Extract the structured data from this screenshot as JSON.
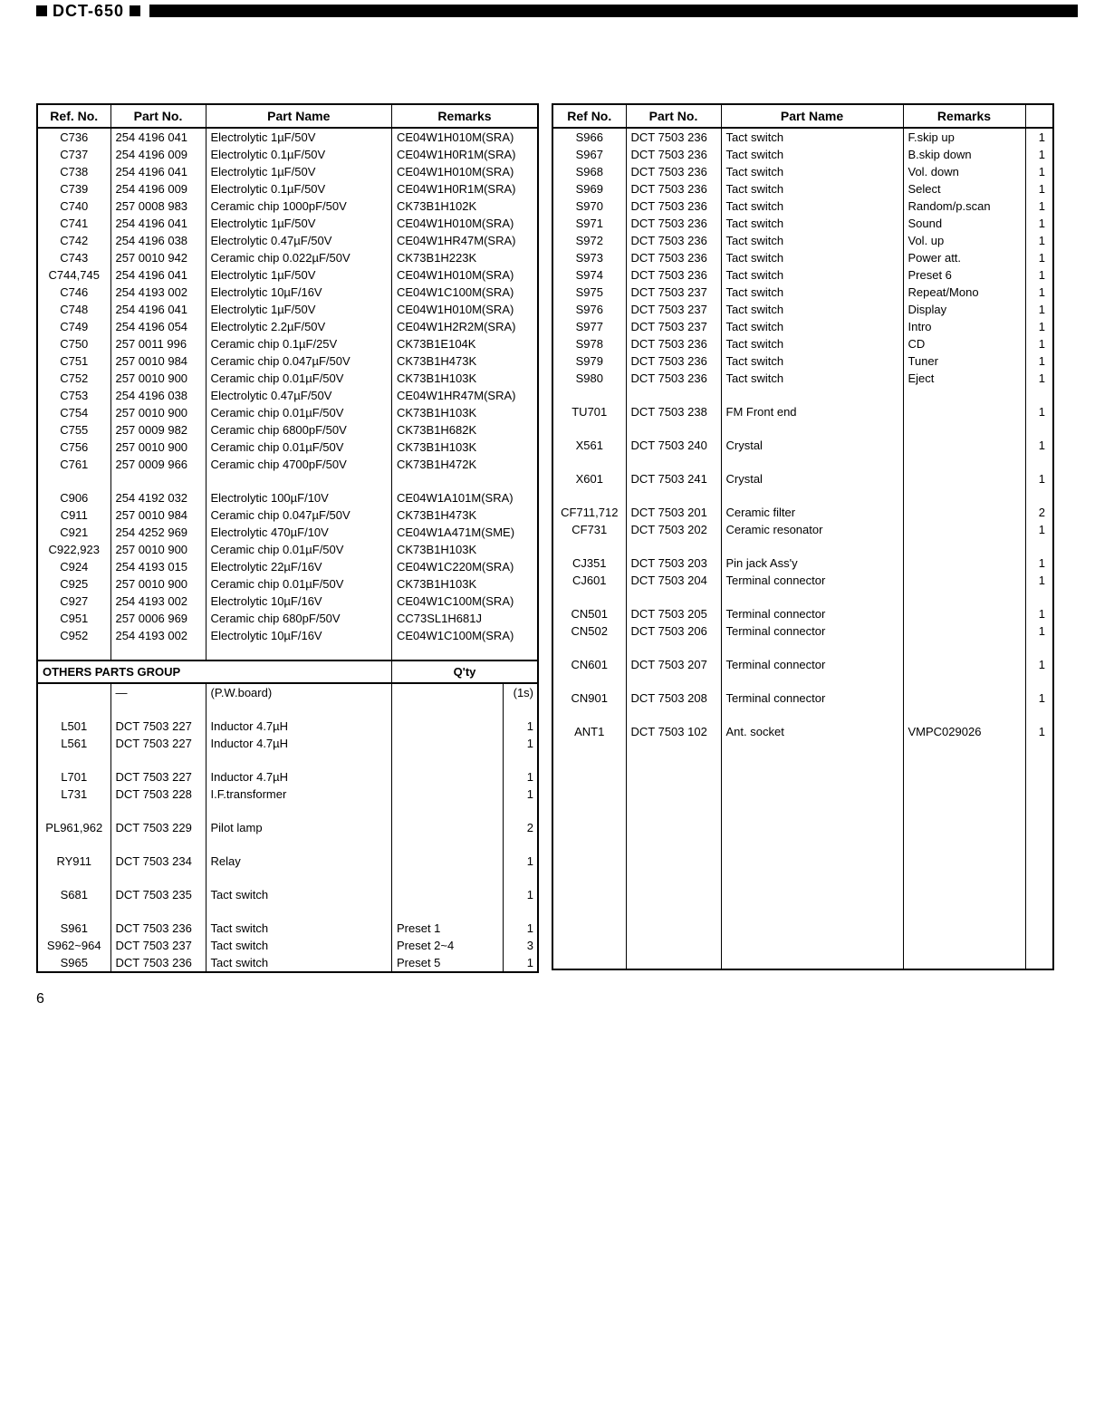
{
  "model": "DCT-650",
  "page_number": "6",
  "headers_left": {
    "ref": "Ref. No.",
    "part": "Part No.",
    "name": "Part Name",
    "rem": "Remarks"
  },
  "headers_right": {
    "ref": "Ref No.",
    "part": "Part No.",
    "name": "Part Name",
    "rem": "Remarks",
    "qty": ""
  },
  "section_label": "OTHERS PARTS GROUP",
  "section_qty": "Q'ty",
  "left_top": [
    {
      "ref": "C736",
      "part": "254 4196 041",
      "name": "Electrolytic 1µF/50V",
      "rem": "CE04W1H010M(SRA)"
    },
    {
      "ref": "C737",
      "part": "254 4196 009",
      "name": "Electrolytic 0.1µF/50V",
      "rem": "CE04W1H0R1M(SRA)"
    },
    {
      "ref": "C738",
      "part": "254 4196 041",
      "name": "Electrolytic 1µF/50V",
      "rem": "CE04W1H010M(SRA)"
    },
    {
      "ref": "C739",
      "part": "254 4196 009",
      "name": "Electrolytic 0.1µF/50V",
      "rem": "CE04W1H0R1M(SRA)"
    },
    {
      "ref": "C740",
      "part": "257 0008 983",
      "name": "Ceramic chip 1000pF/50V",
      "rem": "CK73B1H102K"
    },
    {
      "ref": "C741",
      "part": "254 4196 041",
      "name": "Electrolytic 1µF/50V",
      "rem": "CE04W1H010M(SRA)"
    },
    {
      "ref": "C742",
      "part": "254 4196 038",
      "name": "Electrolytic 0.47µF/50V",
      "rem": "CE04W1HR47M(SRA)"
    },
    {
      "ref": "C743",
      "part": "257 0010 942",
      "name": "Ceramic chip 0.022µF/50V",
      "rem": "CK73B1H223K"
    },
    {
      "ref": "C744,745",
      "part": "254 4196 041",
      "name": "Electrolytic 1µF/50V",
      "rem": "CE04W1H010M(SRA)"
    },
    {
      "ref": "C746",
      "part": "254 4193 002",
      "name": "Electrolytic 10µF/16V",
      "rem": "CE04W1C100M(SRA)"
    },
    {
      "ref": "C748",
      "part": "254 4196 041",
      "name": "Electrolytic 1µF/50V",
      "rem": "CE04W1H010M(SRA)"
    },
    {
      "ref": "C749",
      "part": "254 4196 054",
      "name": "Electrolytic 2.2µF/50V",
      "rem": "CE04W1H2R2M(SRA)"
    },
    {
      "ref": "C750",
      "part": "257 0011 996",
      "name": "Ceramic chip 0.1µF/25V",
      "rem": "CK73B1E104K"
    },
    {
      "ref": "C751",
      "part": "257 0010 984",
      "name": "Ceramic chip 0.047µF/50V",
      "rem": "CK73B1H473K"
    },
    {
      "ref": "C752",
      "part": "257 0010 900",
      "name": "Ceramic chip 0.01µF/50V",
      "rem": "CK73B1H103K"
    },
    {
      "ref": "C753",
      "part": "254 4196 038",
      "name": "Electrolytic 0.47µF/50V",
      "rem": "CE04W1HR47M(SRA)"
    },
    {
      "ref": "C754",
      "part": "257 0010 900",
      "name": "Ceramic chip 0.01µF/50V",
      "rem": "CK73B1H103K"
    },
    {
      "ref": "C755",
      "part": "257 0009 982",
      "name": "Ceramic chip 6800pF/50V",
      "rem": "CK73B1H682K"
    },
    {
      "ref": "C756",
      "part": "257 0010 900",
      "name": "Ceramic chip 0.01µF/50V",
      "rem": "CK73B1H103K"
    },
    {
      "ref": "C761",
      "part": "257 0009 966",
      "name": "Ceramic chip 4700pF/50V",
      "rem": "CK73B1H472K"
    },
    {
      "ref": "",
      "part": "",
      "name": "",
      "rem": ""
    },
    {
      "ref": "C906",
      "part": "254 4192 032",
      "name": "Electrolytic 100µF/10V",
      "rem": "CE04W1A101M(SRA)"
    },
    {
      "ref": "C911",
      "part": "257 0010 984",
      "name": "Ceramic chip 0.047µF/50V",
      "rem": "CK73B1H473K"
    },
    {
      "ref": "C921",
      "part": "254 4252 969",
      "name": "Electrolytic 470µF/10V",
      "rem": "CE04W1A471M(SME)"
    },
    {
      "ref": "C922,923",
      "part": "257 0010 900",
      "name": "Ceramic chip 0.01µF/50V",
      "rem": "CK73B1H103K"
    },
    {
      "ref": "C924",
      "part": "254 4193 015",
      "name": "Electrolytic 22µF/16V",
      "rem": "CE04W1C220M(SRA)"
    },
    {
      "ref": "C925",
      "part": "257 0010 900",
      "name": "Ceramic chip 0.01µF/50V",
      "rem": "CK73B1H103K"
    },
    {
      "ref": "C927",
      "part": "254 4193 002",
      "name": "Electrolytic 10µF/16V",
      "rem": "CE04W1C100M(SRA)"
    },
    {
      "ref": "C951",
      "part": "257 0006 969",
      "name": "Ceramic chip 680pF/50V",
      "rem": "CC73SL1H681J"
    },
    {
      "ref": "C952",
      "part": "254 4193 002",
      "name": "Electrolytic 10µF/16V",
      "rem": "CE04W1C100M(SRA)"
    },
    {
      "ref": "",
      "part": "",
      "name": "",
      "rem": ""
    }
  ],
  "left_bottom": [
    {
      "ref": "",
      "part": "—",
      "name": "(P.W.board)",
      "rem": "",
      "qty": "(1s)"
    },
    {
      "ref": "",
      "part": "",
      "name": "",
      "rem": "",
      "qty": ""
    },
    {
      "ref": "L501",
      "part": "DCT 7503 227",
      "name": "Inductor 4.7µH",
      "rem": "",
      "qty": "1"
    },
    {
      "ref": "L561",
      "part": "DCT 7503 227",
      "name": "Inductor 4.7µH",
      "rem": "",
      "qty": "1"
    },
    {
      "ref": "",
      "part": "",
      "name": "",
      "rem": "",
      "qty": ""
    },
    {
      "ref": "L701",
      "part": "DCT 7503 227",
      "name": "Inductor 4.7µH",
      "rem": "",
      "qty": "1"
    },
    {
      "ref": "L731",
      "part": "DCT 7503 228",
      "name": "I.F.transformer",
      "rem": "",
      "qty": "1"
    },
    {
      "ref": "",
      "part": "",
      "name": "",
      "rem": "",
      "qty": ""
    },
    {
      "ref": "PL961,962",
      "part": "DCT 7503 229",
      "name": "Pilot lamp",
      "rem": "",
      "qty": "2"
    },
    {
      "ref": "",
      "part": "",
      "name": "",
      "rem": "",
      "qty": ""
    },
    {
      "ref": "RY911",
      "part": "DCT 7503 234",
      "name": "Relay",
      "rem": "",
      "qty": "1"
    },
    {
      "ref": "",
      "part": "",
      "name": "",
      "rem": "",
      "qty": ""
    },
    {
      "ref": "S681",
      "part": "DCT 7503 235",
      "name": "Tact switch",
      "rem": "",
      "qty": "1"
    },
    {
      "ref": "",
      "part": "",
      "name": "",
      "rem": "",
      "qty": ""
    },
    {
      "ref": "S961",
      "part": "DCT 7503 236",
      "name": "Tact switch",
      "rem": "Preset 1",
      "qty": "1"
    },
    {
      "ref": "S962~964",
      "part": "DCT 7503 237",
      "name": "Tact switch",
      "rem": "Preset 2~4",
      "qty": "3"
    },
    {
      "ref": "S965",
      "part": "DCT 7503 236",
      "name": "Tact switch",
      "rem": "Preset 5",
      "qty": "1"
    }
  ],
  "right": [
    {
      "ref": "S966",
      "part": "DCT 7503 236",
      "name": "Tact switch",
      "rem": "F.skip up",
      "qty": "1"
    },
    {
      "ref": "S967",
      "part": "DCT 7503 236",
      "name": "Tact switch",
      "rem": "B.skip down",
      "qty": "1"
    },
    {
      "ref": "S968",
      "part": "DCT 7503 236",
      "name": "Tact switch",
      "rem": "Vol. down",
      "qty": "1"
    },
    {
      "ref": "S969",
      "part": "DCT 7503 236",
      "name": "Tact switch",
      "rem": "Select",
      "qty": "1"
    },
    {
      "ref": "S970",
      "part": "DCT 7503 236",
      "name": "Tact switch",
      "rem": "Random/p.scan",
      "qty": "1"
    },
    {
      "ref": "S971",
      "part": "DCT 7503 236",
      "name": "Tact switch",
      "rem": "Sound",
      "qty": "1"
    },
    {
      "ref": "S972",
      "part": "DCT 7503 236",
      "name": "Tact switch",
      "rem": "Vol. up",
      "qty": "1"
    },
    {
      "ref": "S973",
      "part": "DCT 7503 236",
      "name": "Tact switch",
      "rem": "Power att.",
      "qty": "1"
    },
    {
      "ref": "S974",
      "part": "DCT 7503 236",
      "name": "Tact switch",
      "rem": "Preset 6",
      "qty": "1"
    },
    {
      "ref": "S975",
      "part": "DCT 7503 237",
      "name": "Tact switch",
      "rem": "Repeat/Mono",
      "qty": "1"
    },
    {
      "ref": "S976",
      "part": "DCT 7503 237",
      "name": "Tact switch",
      "rem": "Display",
      "qty": "1"
    },
    {
      "ref": "S977",
      "part": "DCT 7503 237",
      "name": "Tact switch",
      "rem": "Intro",
      "qty": "1"
    },
    {
      "ref": "S978",
      "part": "DCT 7503 236",
      "name": "Tact switch",
      "rem": "CD",
      "qty": "1"
    },
    {
      "ref": "S979",
      "part": "DCT 7503 236",
      "name": "Tact switch",
      "rem": "Tuner",
      "qty": "1"
    },
    {
      "ref": "S980",
      "part": "DCT 7503 236",
      "name": "Tact switch",
      "rem": "Eject",
      "qty": "1"
    },
    {
      "ref": "",
      "part": "",
      "name": "",
      "rem": "",
      "qty": ""
    },
    {
      "ref": "TU701",
      "part": "DCT 7503 238",
      "name": "FM Front end",
      "rem": "",
      "qty": "1"
    },
    {
      "ref": "",
      "part": "",
      "name": "",
      "rem": "",
      "qty": ""
    },
    {
      "ref": "X561",
      "part": "DCT 7503 240",
      "name": "Crystal",
      "rem": "",
      "qty": "1"
    },
    {
      "ref": "",
      "part": "",
      "name": "",
      "rem": "",
      "qty": ""
    },
    {
      "ref": "X601",
      "part": "DCT 7503 241",
      "name": "Crystal",
      "rem": "",
      "qty": "1"
    },
    {
      "ref": "",
      "part": "",
      "name": "",
      "rem": "",
      "qty": ""
    },
    {
      "ref": "CF711,712",
      "part": "DCT 7503 201",
      "name": "Ceramic filter",
      "rem": "",
      "qty": "2"
    },
    {
      "ref": "CF731",
      "part": "DCT 7503 202",
      "name": "Ceramic resonator",
      "rem": "",
      "qty": "1"
    },
    {
      "ref": "",
      "part": "",
      "name": "",
      "rem": "",
      "qty": ""
    },
    {
      "ref": "CJ351",
      "part": "DCT 7503 203",
      "name": "Pin jack Ass'y",
      "rem": "",
      "qty": "1"
    },
    {
      "ref": "CJ601",
      "part": "DCT 7503 204",
      "name": "Terminal connector",
      "rem": "",
      "qty": "1"
    },
    {
      "ref": "",
      "part": "",
      "name": "",
      "rem": "",
      "qty": ""
    },
    {
      "ref": "CN501",
      "part": "DCT 7503 205",
      "name": "Terminal connector",
      "rem": "",
      "qty": "1"
    },
    {
      "ref": "CN502",
      "part": "DCT 7503 206",
      "name": "Terminal connector",
      "rem": "",
      "qty": "1"
    },
    {
      "ref": "",
      "part": "",
      "name": "",
      "rem": "",
      "qty": ""
    },
    {
      "ref": "CN601",
      "part": "DCT 7503 207",
      "name": "Terminal connector",
      "rem": "",
      "qty": "1"
    },
    {
      "ref": "",
      "part": "",
      "name": "",
      "rem": "",
      "qty": ""
    },
    {
      "ref": "CN901",
      "part": "DCT 7503 208",
      "name": "Terminal connector",
      "rem": "",
      "qty": "1"
    },
    {
      "ref": "",
      "part": "",
      "name": "",
      "rem": "",
      "qty": ""
    },
    {
      "ref": "ANT1",
      "part": "DCT 7503 102",
      "name": "Ant. socket",
      "rem": "VMPC029026",
      "qty": "1"
    }
  ],
  "right_pad_rows": 14
}
